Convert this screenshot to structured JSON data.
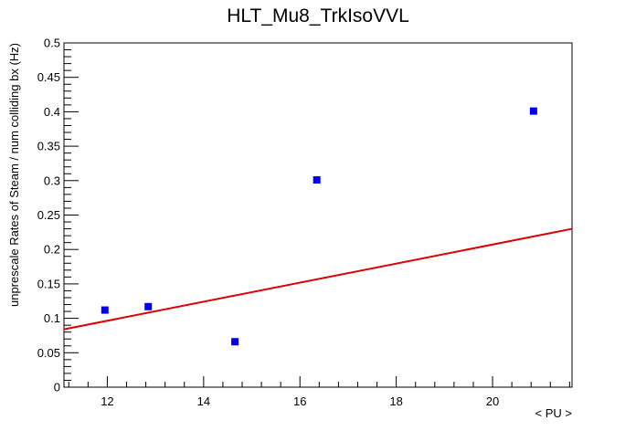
{
  "chart_data": {
    "type": "scatter",
    "title": "HLT_Mu8_TrkIsoVVL",
    "xlabel": "< PU >",
    "ylabel": "unprescale Rates of Steam / num colliding bx (Hz)",
    "xlim": [
      11.1,
      21.65
    ],
    "ylim": [
      0,
      0.5
    ],
    "x_ticks": [
      "12",
      "14",
      "16",
      "18",
      "20"
    ],
    "y_ticks": [
      "0",
      "0.05",
      "0.1",
      "0.15",
      "0.2",
      "0.25",
      "0.3",
      "0.35",
      "0.4",
      "0.45",
      "0.5"
    ],
    "grid": false,
    "series": [
      {
        "kind": "points",
        "marker": "square",
        "color": "#0000ee",
        "x": [
          11.95,
          12.85,
          14.65,
          16.35,
          20.85
        ],
        "y": [
          0.112,
          0.117,
          0.066,
          0.301,
          0.401
        ]
      },
      {
        "kind": "fit-line",
        "color": "#dd0000",
        "x": [
          11.1,
          21.65
        ],
        "y": [
          0.084,
          0.23
        ]
      }
    ]
  }
}
